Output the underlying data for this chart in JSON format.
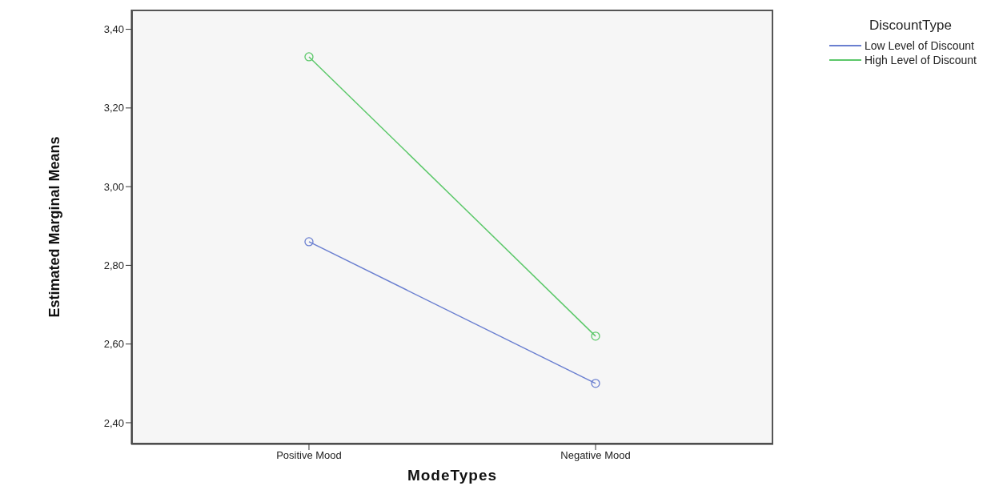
{
  "chart_data": {
    "type": "line",
    "xlabel": "ModeTypes",
    "ylabel": "Estimated Marginal Means",
    "legend_title": "DiscountType",
    "categories": [
      "Positive Mood",
      "Negative Mood"
    ],
    "series": [
      {
        "name": "Low Level of Discount",
        "color": "#6a7fd0",
        "values": [
          2.86,
          2.5
        ]
      },
      {
        "name": "High Level of Discount",
        "color": "#5cc86a",
        "values": [
          3.33,
          2.62
        ]
      }
    ],
    "ylim": [
      2.345,
      3.45
    ],
    "yticks": [
      {
        "value": 2.4,
        "label": "2,40"
      },
      {
        "value": 2.6,
        "label": "2,60"
      },
      {
        "value": 2.8,
        "label": "2,80"
      },
      {
        "value": 3.0,
        "label": "3,00"
      },
      {
        "value": 3.2,
        "label": "3,20"
      },
      {
        "value": 3.4,
        "label": "3,40"
      }
    ],
    "marker": "circle",
    "legend": "top right",
    "grid": false
  }
}
